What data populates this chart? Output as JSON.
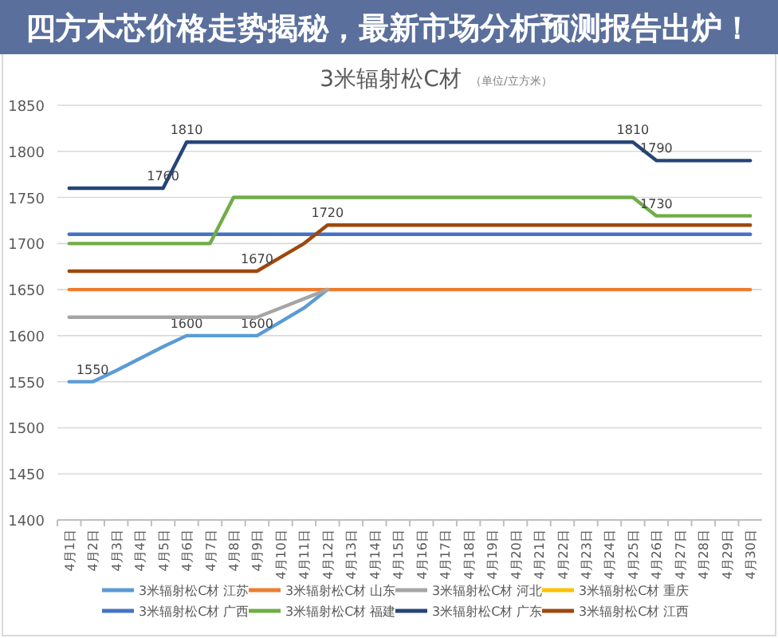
{
  "chart_data": {
    "type": "line",
    "title": "3米辐射松C材",
    "subtitle": "（单位/立方米）",
    "annotations": [
      "四方木芯价格走势揭秘，最新市场分析预测报告出炉！"
    ],
    "categories": [
      "4月1日",
      "4月2日",
      "4月3日",
      "4月4日",
      "4月5日",
      "4月6日",
      "4月7日",
      "4月8日",
      "4月9日",
      "4月10日",
      "4月11日",
      "4月12日",
      "4月13日",
      "4月14日",
      "4月15日",
      "4月16日",
      "4月17日",
      "4月18日",
      "4月19日",
      "4月20日",
      "4月21日",
      "4月22日",
      "4月23日",
      "4月24日",
      "4月25日",
      "4月26日",
      "4月27日",
      "4月28日",
      "4月29日",
      "4月30日"
    ],
    "ylim": [
      1400,
      1850
    ],
    "yticks": [
      1400,
      1450,
      1500,
      1550,
      1600,
      1650,
      1700,
      1750,
      1800,
      1850
    ],
    "grid": "y",
    "legend": "bottom",
    "series": [
      {
        "name": "3米辐射松C材 江苏",
        "color": "#5b9bd5",
        "values": [
          1550,
          1550,
          1562,
          1575,
          1588,
          1600,
          1600,
          1600,
          1600,
          1615,
          1630,
          1650,
          null,
          null,
          null,
          null,
          null,
          null,
          null,
          null,
          null,
          null,
          null,
          null,
          null,
          null,
          null,
          null,
          null,
          null
        ],
        "value_labels": [
          null,
          "1550",
          null,
          null,
          null,
          "1600",
          null,
          null,
          "1600",
          null,
          null,
          null,
          null,
          null,
          null,
          null,
          null,
          null,
          null,
          null,
          null,
          null,
          null,
          null,
          null,
          null,
          null,
          null,
          null,
          null
        ]
      },
      {
        "name": "3米辐射松C材 山东",
        "color": "#ed7d31",
        "values": [
          1650,
          1650,
          1650,
          1650,
          1650,
          1650,
          1650,
          1650,
          1650,
          1650,
          1650,
          1650,
          1650,
          1650,
          1650,
          1650,
          1650,
          1650,
          1650,
          1650,
          1650,
          1650,
          1650,
          1650,
          1650,
          1650,
          1650,
          1650,
          1650,
          1650
        ]
      },
      {
        "name": "3米辐射松C材 河北",
        "color": "#a5a5a5",
        "values": [
          1620,
          1620,
          1620,
          1620,
          1620,
          1620,
          1620,
          1620,
          1620,
          1630,
          1640,
          1650,
          null,
          null,
          null,
          null,
          null,
          null,
          null,
          null,
          null,
          null,
          null,
          null,
          null,
          null,
          null,
          null,
          null,
          null
        ]
      },
      {
        "name": "3米辐射松C材 重庆",
        "color": "#ffc000",
        "values": [
          null,
          null,
          null,
          null,
          null,
          null,
          null,
          null,
          null,
          null,
          null,
          null,
          null,
          null,
          null,
          null,
          null,
          null,
          null,
          null,
          null,
          null,
          null,
          null,
          null,
          null,
          null,
          null,
          null,
          null
        ]
      },
      {
        "name": "3米辐射松C材 广西",
        "color": "#4472c4",
        "values": [
          1710,
          1710,
          1710,
          1710,
          1710,
          1710,
          1710,
          1710,
          1710,
          1710,
          1710,
          1710,
          1710,
          1710,
          1710,
          1710,
          1710,
          1710,
          1710,
          1710,
          1710,
          1710,
          1710,
          1710,
          1710,
          1710,
          1710,
          1710,
          1710,
          1710
        ]
      },
      {
        "name": "3米辐射松C材 福建",
        "color": "#70ad47",
        "values": [
          1700,
          1700,
          1700,
          1700,
          1700,
          1700,
          1700,
          1750,
          1750,
          1750,
          1750,
          1750,
          1750,
          1750,
          1750,
          1750,
          1750,
          1750,
          1750,
          1750,
          1750,
          1750,
          1750,
          1750,
          1750,
          1730,
          1730,
          1730,
          1730,
          1730
        ],
        "value_labels": [
          null,
          null,
          null,
          null,
          null,
          null,
          null,
          null,
          null,
          null,
          null,
          null,
          null,
          null,
          null,
          null,
          null,
          null,
          null,
          null,
          null,
          null,
          null,
          null,
          null,
          "1730",
          null,
          null,
          null,
          null
        ]
      },
      {
        "name": "3米辐射松C材 广东",
        "color": "#264478",
        "values": [
          1760,
          1760,
          1760,
          1760,
          1760,
          1810,
          1810,
          1810,
          1810,
          1810,
          1810,
          1810,
          1810,
          1810,
          1810,
          1810,
          1810,
          1810,
          1810,
          1810,
          1810,
          1810,
          1810,
          1810,
          1810,
          1790,
          1790,
          1790,
          1790,
          1790
        ],
        "value_labels": [
          null,
          null,
          null,
          null,
          "1760",
          "1810",
          null,
          null,
          null,
          null,
          null,
          null,
          null,
          null,
          null,
          null,
          null,
          null,
          null,
          null,
          null,
          null,
          null,
          null,
          "1810",
          "1790",
          null,
          null,
          null,
          null
        ]
      },
      {
        "name": "3米辐射松C材 江西",
        "color": "#9e480e",
        "values": [
          1670,
          1670,
          1670,
          1670,
          1670,
          1670,
          1670,
          1670,
          1670,
          1685,
          1700,
          1720,
          1720,
          1720,
          1720,
          1720,
          1720,
          1720,
          1720,
          1720,
          1720,
          1720,
          1720,
          1720,
          1720,
          1720,
          1720,
          1720,
          1720,
          1720
        ],
        "value_labels": [
          null,
          null,
          null,
          null,
          null,
          null,
          null,
          null,
          "1670",
          null,
          null,
          "1720",
          null,
          null,
          null,
          null,
          null,
          null,
          null,
          null,
          null,
          null,
          null,
          null,
          null,
          null,
          null,
          null,
          null,
          null
        ]
      }
    ]
  }
}
